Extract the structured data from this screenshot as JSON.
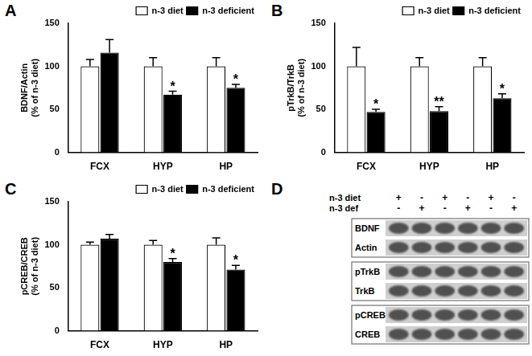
{
  "chart_data": [
    {
      "panel": "A",
      "type": "bar",
      "categories": [
        "FCX",
        "HYP",
        "HP"
      ],
      "ylabel": [
        "BDNF/Actin",
        "(% of n-3 diet)"
      ],
      "ylim": [
        0,
        150
      ],
      "yticks": [
        0,
        50,
        100,
        150
      ],
      "legend": "upper right",
      "grid": false,
      "series": [
        {
          "name": "n-3 diet",
          "color": "#ffffff",
          "values": [
            100,
            100,
            100
          ],
          "errors": [
            8,
            10,
            10
          ]
        },
        {
          "name": "n-3 deficient",
          "color": "#000000",
          "values": [
            116,
            67,
            75
          ],
          "errors": [
            15,
            4,
            4
          ],
          "significance": [
            null,
            "*",
            "*"
          ]
        }
      ]
    },
    {
      "panel": "B",
      "type": "bar",
      "categories": [
        "FCX",
        "HYP",
        "HP"
      ],
      "ylabel": [
        "pTrkB/TrkB",
        "(% of n-3 diet)"
      ],
      "ylim": [
        0,
        150
      ],
      "yticks": [
        0,
        50,
        100,
        150
      ],
      "legend": "upper right",
      "grid": false,
      "series": [
        {
          "name": "n-3 diet",
          "color": "#ffffff",
          "values": [
            100,
            100,
            100
          ],
          "errors": [
            22,
            10,
            10
          ]
        },
        {
          "name": "n-3 deficient",
          "color": "#000000",
          "values": [
            47,
            48,
            63
          ],
          "errors": [
            3,
            5,
            5
          ],
          "significance": [
            "*",
            "**",
            "*"
          ]
        }
      ]
    },
    {
      "panel": "C",
      "type": "bar",
      "categories": [
        "FCX",
        "HYP",
        "HP"
      ],
      "ylabel": [
        "pCREB/CREB",
        "(% of n-3 diet)"
      ],
      "ylim": [
        0,
        150
      ],
      "yticks": [
        0,
        50,
        100,
        150
      ],
      "legend": "upper right",
      "grid": false,
      "series": [
        {
          "name": "n-3 diet",
          "color": "#ffffff",
          "values": [
            100,
            100,
            100
          ],
          "errors": [
            3,
            5,
            8
          ]
        },
        {
          "name": "n-3 deficient",
          "color": "#000000",
          "values": [
            107,
            80,
            71
          ],
          "errors": [
            5,
            4,
            5
          ],
          "significance": [
            null,
            "*",
            "*"
          ]
        }
      ]
    }
  ],
  "blot": {
    "panel": "D",
    "conditions": [
      {
        "name": "n-3 diet",
        "signs": [
          "+",
          "-",
          "+",
          "-",
          "+",
          "-"
        ]
      },
      {
        "name": "n-3 def",
        "signs": [
          "-",
          "+",
          "-",
          "+",
          "-",
          "+"
        ]
      }
    ],
    "groups": [
      [
        "BDNF",
        "Actin"
      ],
      [
        "pTrkB",
        "TrkB"
      ],
      [
        "pCREB",
        "CREB"
      ]
    ]
  }
}
